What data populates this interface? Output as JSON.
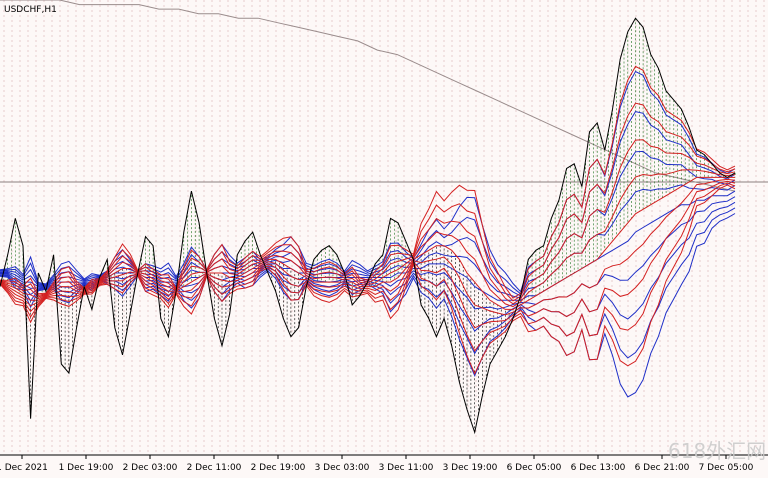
{
  "window": {
    "title": "USDCHF,H1"
  },
  "watermark": "618外汇网",
  "colors": {
    "background": "#fdf8f7",
    "price_line": "#000000",
    "fill_up": "#1a6e1a",
    "fill_down": "#000000",
    "red_ribbon": "#d42020",
    "blue_ribbon": "#1f2fc8",
    "long_ma": "#9a8c8c",
    "level_line": "#8a7f7f",
    "grid": "#d9b0b0"
  },
  "chart_data": {
    "type": "line",
    "title": "USDCHF,H1",
    "xlabel": "",
    "ylabel": "",
    "grid": "vertical dotted",
    "x_tick_labels": [
      "1 Dec 2021",
      "1 Dec 19:00",
      "2 Dec 03:00",
      "2 Dec 11:00",
      "2 Dec 19:00",
      "3 Dec 03:00",
      "3 Dec 11:00",
      "3 Dec 19:00",
      "6 Dec 05:00",
      "6 Dec 13:00",
      "6 Dec 21:00",
      "7 Dec 05:00"
    ],
    "y_range": [
      0,
      100
    ],
    "horizontal_level": 60,
    "series": [
      {
        "role": "price",
        "values": [
          37,
          44,
          52,
          46,
          8,
          40,
          36,
          44,
          20,
          18,
          28,
          37,
          32,
          39,
          43,
          28,
          22,
          31,
          40,
          48,
          46,
          30,
          26,
          36,
          49,
          58,
          51,
          40,
          30,
          24,
          31,
          44,
          47,
          49,
          44,
          40,
          36,
          30,
          26,
          28,
          37,
          43,
          45,
          46,
          44,
          40,
          33,
          35,
          38,
          42,
          44,
          52,
          51,
          47,
          43,
          33,
          30,
          26,
          30,
          24,
          16,
          10,
          5,
          13,
          20,
          23,
          26,
          30,
          35,
          43,
          45,
          46,
          52,
          56,
          63,
          64,
          59,
          71,
          73,
          67,
          76,
          87,
          93,
          96,
          94,
          88,
          85,
          80,
          78,
          76,
          72,
          67,
          66,
          64,
          62,
          61,
          62
        ]
      },
      {
        "role": "long-term moving average",
        "values": [
          100,
          100,
          100,
          100,
          99,
          99,
          99,
          99,
          98,
          98,
          97,
          97,
          96,
          96,
          95,
          94,
          93,
          92,
          91,
          89,
          88,
          86,
          84,
          82,
          80,
          78,
          76,
          74,
          72,
          70,
          68,
          66,
          64,
          62,
          61,
          60,
          59,
          58
        ]
      },
      {
        "role": "red ribbon center",
        "values": [
          38,
          37,
          36,
          35,
          34,
          34,
          35,
          36,
          37,
          37,
          36,
          36,
          37,
          38,
          39,
          40,
          41,
          41,
          40,
          39,
          38,
          37,
          36,
          36,
          37,
          38,
          39,
          40,
          40,
          40,
          39,
          39,
          40,
          41,
          42,
          43,
          43,
          42,
          41,
          40,
          39,
          38,
          38,
          38,
          38,
          38,
          38,
          37,
          37,
          37,
          38,
          38,
          39,
          41,
          43,
          44,
          45,
          46,
          46,
          45,
          43,
          40,
          38,
          36,
          34,
          33,
          32,
          32,
          33,
          34,
          35,
          36,
          37,
          38,
          39,
          40,
          41,
          42,
          43,
          45,
          47,
          49,
          51,
          53,
          54,
          55,
          56,
          57,
          58,
          59,
          60,
          61,
          61,
          61,
          61,
          61,
          61
        ]
      },
      {
        "role": "blue ribbon center",
        "values": [
          40,
          40,
          39,
          38,
          38,
          37,
          37,
          38,
          38,
          38,
          38,
          38,
          38,
          39,
          39,
          40,
          40,
          40,
          40,
          39,
          39,
          38,
          38,
          38,
          38,
          39,
          39,
          40,
          40,
          40,
          40,
          40,
          40,
          41,
          41,
          42,
          42,
          41,
          41,
          40,
          40,
          39,
          39,
          39,
          39,
          39,
          39,
          39,
          39,
          39,
          39,
          39,
          40,
          40,
          41,
          41,
          42,
          42,
          42,
          41,
          40,
          39,
          37,
          36,
          35,
          34,
          34,
          34,
          34,
          35,
          35,
          36,
          37,
          38,
          39,
          40,
          41,
          42,
          43,
          44,
          45,
          46,
          47,
          49,
          50,
          51,
          52,
          53,
          54,
          55,
          55,
          56,
          56,
          57,
          57,
          57,
          58
        ]
      }
    ]
  }
}
